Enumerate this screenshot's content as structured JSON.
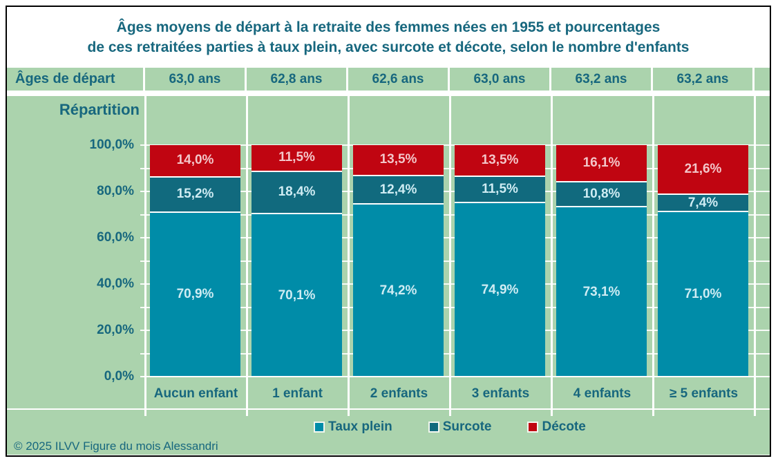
{
  "title": {
    "line1": "Âges moyens de départ à la retraite des femmes nées en 1955 et pourcentages",
    "line2": "de ces retraitées parties à taux plein, avec surcote et décote, selon le nombre d'enfants"
  },
  "ages_row": {
    "label": "Âges de départ",
    "values": [
      "63,0 ans",
      "62,8 ans",
      "62,6 ans",
      "63,0 ans",
      "63,2 ans",
      "63,2 ans"
    ]
  },
  "chart_data": {
    "type": "bar",
    "stacked": true,
    "title": "Âges moyens de départ à la retraite des femmes nées en 1955 et pourcentages de ces retraitées parties à taux plein, avec surcote et décote, selon le nombre d'enfants",
    "ylabel": "Répartition",
    "xlabel": "",
    "ylim": [
      0,
      100
    ],
    "grid": true,
    "minor_grid_step_pct": 10,
    "legend_position": "bottom",
    "y_tick_labels": [
      "100,0%",
      "80,0%",
      "60,0%",
      "40,0%",
      "20,0%",
      "0,0%"
    ],
    "categories": [
      "Aucun enfant",
      "1 enfant",
      "2 enfants",
      "3 enfants",
      "4 enfants",
      "≥ 5 enfants"
    ],
    "series": [
      {
        "name": "Taux plein",
        "color": "#008ca8",
        "label_color": "#cfecf3",
        "values": [
          70.9,
          70.1,
          74.2,
          74.9,
          73.1,
          71.0
        ],
        "labels": [
          "70,9%",
          "70,1%",
          "74,2%",
          "74,9%",
          "73,1%",
          "71,0%"
        ]
      },
      {
        "name": "Surcote",
        "color": "#116a7e",
        "label_color": "#cfecf3",
        "values": [
          15.2,
          18.4,
          12.4,
          11.5,
          10.8,
          7.4
        ],
        "labels": [
          "15,2%",
          "18,4%",
          "12,4%",
          "11,5%",
          "10,8%",
          "7,4%"
        ]
      },
      {
        "name": "Décote",
        "color": "#c00511",
        "label_color": "#f3c6c9",
        "values": [
          14.0,
          11.5,
          13.5,
          13.5,
          16.1,
          21.6
        ],
        "labels": [
          "14,0%",
          "11,5%",
          "13,5%",
          "13,5%",
          "16,1%",
          "21,6%"
        ]
      }
    ]
  },
  "footer": {
    "copyright": "© 2025 ILVV Figure du mois Alessandri"
  },
  "colors": {
    "background_green": "#abd3ad",
    "text_teal": "#17677e",
    "grid_white": "#ffffff",
    "frame_black": "#000000",
    "taux_plein": "#008ca8",
    "surcote": "#116a7e",
    "decote": "#c00511"
  }
}
